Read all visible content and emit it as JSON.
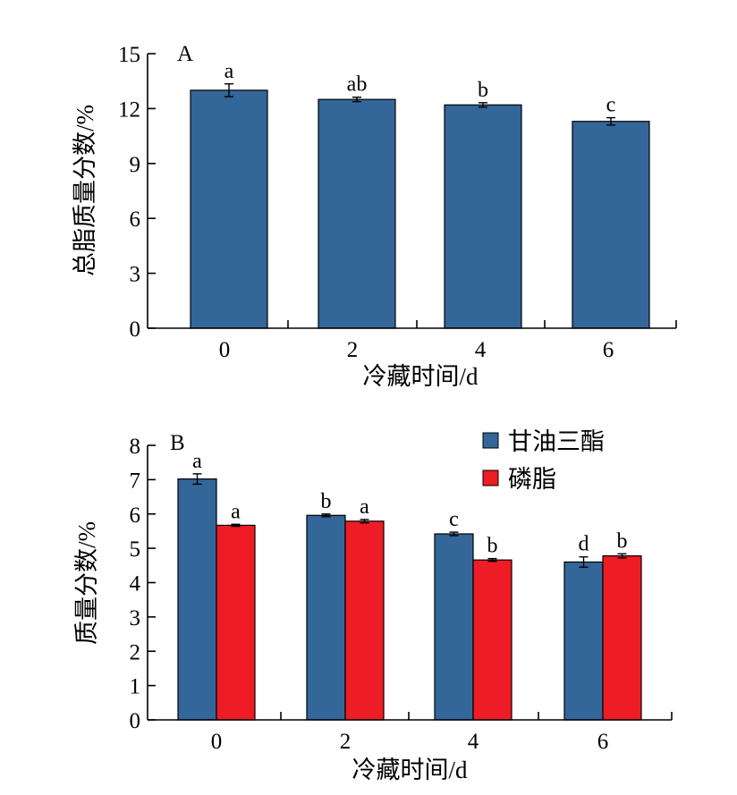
{
  "chart_data": [
    {
      "type": "bar",
      "panel_label": "A",
      "categories": [
        "0",
        "2",
        "4",
        "6"
      ],
      "xlabel": "冷藏时间/d",
      "ylabel": "总脂质量分数/%",
      "ylim": [
        0,
        15
      ],
      "yticks": [
        "0",
        "3",
        "6",
        "9",
        "12",
        "15"
      ],
      "colors": [
        "#336699"
      ],
      "series": [
        {
          "values": [
            13.0,
            12.5,
            12.2,
            11.3
          ],
          "errors": [
            0.35,
            0.12,
            0.12,
            0.2
          ],
          "letters": [
            "a",
            "ab",
            "b",
            "c"
          ]
        }
      ]
    },
    {
      "type": "bar",
      "panel_label": "B",
      "categories": [
        "0",
        "2",
        "4",
        "6"
      ],
      "xlabel": "冷藏时间/d",
      "ylabel": "质量分数/%",
      "ylim": [
        0,
        8
      ],
      "yticks": [
        "0",
        "1",
        "2",
        "3",
        "4",
        "5",
        "6",
        "7",
        "8"
      ],
      "legend_position": "top-right",
      "colors": [
        "#336699",
        "#ee1c25"
      ],
      "series": [
        {
          "name": "甘油三酯",
          "values": [
            7.02,
            5.96,
            5.42,
            4.6
          ],
          "errors": [
            0.15,
            0.04,
            0.05,
            0.15
          ],
          "letters": [
            "a",
            "b",
            "c",
            "d"
          ]
        },
        {
          "name": "磷脂",
          "values": [
            5.67,
            5.79,
            4.66,
            4.78
          ],
          "errors": [
            0.03,
            0.05,
            0.04,
            0.06
          ],
          "letters": [
            "a",
            "a",
            "b",
            "b"
          ]
        }
      ]
    }
  ]
}
